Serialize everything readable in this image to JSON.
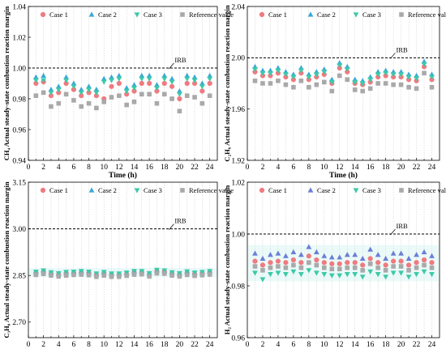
{
  "chart_data": [
    {
      "type": "scatter",
      "ylabel": "CH₄ Actual steady-state combustion reaction margin",
      "xlabel": "Time (h)",
      "ylim": [
        0.94,
        1.04
      ],
      "yticks": [
        "0.94",
        "0.96",
        "0.98",
        "1.00",
        "1.02",
        "1.04"
      ],
      "xlim": [
        0,
        25
      ],
      "xticks": [
        "0",
        "2",
        "4",
        "6",
        "8",
        "10",
        "12",
        "14",
        "16",
        "18",
        "20",
        "22",
        "24"
      ],
      "reference_line": {
        "label": "IRB",
        "y": 1.0
      },
      "legend": [
        "Case 1",
        "Case 2",
        "Case 3",
        "Reference value"
      ],
      "x": [
        1,
        2,
        3,
        4,
        5,
        6,
        7,
        8,
        9,
        10,
        11,
        12,
        13,
        14,
        15,
        16,
        17,
        18,
        19,
        20,
        21,
        22,
        23,
        24
      ],
      "series": [
        {
          "name": "Case 1",
          "marker": "circle",
          "color": "#f07a80",
          "values": [
            0.99,
            0.991,
            0.982,
            0.984,
            0.99,
            0.986,
            0.982,
            0.984,
            0.982,
            0.98,
            0.988,
            0.99,
            0.983,
            0.985,
            0.99,
            0.99,
            0.985,
            0.99,
            0.988,
            0.98,
            0.99,
            0.99,
            0.985,
            0.99
          ]
        },
        {
          "name": "Case 2",
          "marker": "triangle-up",
          "color": "#3aa8d8",
          "values": [
            0.994,
            0.995,
            0.986,
            0.988,
            0.994,
            0.99,
            0.986,
            0.988,
            0.986,
            0.993,
            0.994,
            0.995,
            0.987,
            0.989,
            0.995,
            0.995,
            0.989,
            0.995,
            0.993,
            0.985,
            0.995,
            0.994,
            0.99,
            0.995
          ]
        },
        {
          "name": "Case 3",
          "marker": "triangle-down",
          "color": "#3cc9a8",
          "values": [
            0.992,
            0.992,
            0.984,
            0.986,
            0.992,
            0.988,
            0.984,
            0.986,
            0.984,
            0.991,
            0.992,
            0.993,
            0.985,
            0.987,
            0.993,
            0.993,
            0.987,
            0.993,
            0.991,
            0.983,
            0.993,
            0.992,
            0.988,
            0.993
          ]
        },
        {
          "name": "Reference value",
          "marker": "square",
          "color": "#a9a9a9",
          "values": [
            0.982,
            0.984,
            0.975,
            0.977,
            0.983,
            0.979,
            0.975,
            0.977,
            0.974,
            0.978,
            0.981,
            0.982,
            0.976,
            0.978,
            0.983,
            0.983,
            0.977,
            0.983,
            0.98,
            0.972,
            0.982,
            0.981,
            0.977,
            0.982
          ]
        }
      ]
    },
    {
      "type": "scatter",
      "ylabel": "C₂H₆ Actual steady-state combustion reaction margin",
      "xlabel": "Time (h)",
      "ylim": [
        1.92,
        2.04
      ],
      "yticks": [
        "1.92",
        "1.96",
        "2.00",
        "2.04"
      ],
      "xlim": [
        0,
        25
      ],
      "xticks": [
        "0",
        "2",
        "4",
        "6",
        "8",
        "10",
        "12",
        "14",
        "16",
        "18",
        "20",
        "22",
        "24"
      ],
      "reference_line": {
        "label": "IRB",
        "y": 2.0
      },
      "legend": [
        "Case 1",
        "Case 2",
        "Case 3",
        "Reference value"
      ],
      "x": [
        1,
        2,
        3,
        4,
        5,
        6,
        7,
        8,
        9,
        10,
        11,
        12,
        13,
        14,
        15,
        16,
        17,
        18,
        19,
        20,
        21,
        22,
        23,
        24
      ],
      "series": [
        {
          "name": "Case 1",
          "marker": "circle",
          "color": "#f07a80",
          "values": [
            1.989,
            1.986,
            1.986,
            1.988,
            1.985,
            1.983,
            1.988,
            1.983,
            1.985,
            1.987,
            1.98,
            1.992,
            1.989,
            1.98,
            1.979,
            1.981,
            1.985,
            1.986,
            1.985,
            1.985,
            1.983,
            1.982,
            1.993,
            1.983
          ]
        },
        {
          "name": "Case 2",
          "marker": "triangle-up",
          "color": "#3aa8d8",
          "values": [
            1.993,
            1.99,
            1.99,
            1.992,
            1.989,
            1.987,
            1.992,
            1.987,
            1.989,
            1.991,
            1.983,
            1.996,
            1.993,
            1.983,
            1.982,
            1.985,
            1.989,
            1.99,
            1.989,
            1.989,
            1.987,
            1.986,
            1.997,
            1.987
          ]
        },
        {
          "name": "Case 3",
          "marker": "triangle-down",
          "color": "#3cc9a8",
          "values": [
            1.991,
            1.988,
            1.988,
            1.99,
            1.987,
            1.985,
            1.99,
            1.985,
            1.987,
            1.989,
            1.981,
            1.994,
            1.991,
            1.981,
            1.98,
            1.983,
            1.987,
            1.988,
            1.987,
            1.987,
            1.985,
            1.984,
            1.995,
            1.985
          ]
        },
        {
          "name": "Reference value",
          "marker": "square",
          "color": "#a9a9a9",
          "values": [
            1.982,
            1.98,
            1.98,
            1.982,
            1.979,
            1.977,
            1.982,
            1.977,
            1.979,
            1.981,
            1.974,
            1.986,
            1.983,
            1.975,
            1.974,
            1.976,
            1.98,
            1.98,
            1.979,
            1.979,
            1.977,
            1.976,
            1.988,
            1.977
          ]
        }
      ]
    },
    {
      "type": "scatter",
      "ylabel": "C₃H₈ Actual steady-state combustion reaction margin",
      "xlabel": "Time (h)",
      "ylim": [
        2.65,
        3.15
      ],
      "yticks": [
        "2.70",
        "2.85",
        "3.00",
        "3.15"
      ],
      "xlim": [
        0,
        25
      ],
      "xticks": [
        "0",
        "2",
        "4",
        "6",
        "8",
        "10",
        "12",
        "14",
        "16",
        "18",
        "20",
        "22",
        "24"
      ],
      "reference_line": {
        "label": "IRB",
        "y": 3.0
      },
      "legend": [
        "Case 1",
        "Case 2",
        "Case 3",
        "Reference value"
      ],
      "x": [
        1,
        2,
        3,
        4,
        5,
        6,
        7,
        8,
        9,
        10,
        11,
        12,
        13,
        14,
        15,
        16,
        17,
        18,
        19,
        20,
        21,
        22,
        23,
        24
      ],
      "series": [
        {
          "name": "Case 1",
          "marker": "circle",
          "color": "#f07a80",
          "values": [
            2.858,
            2.862,
            2.856,
            2.853,
            2.857,
            2.858,
            2.86,
            2.858,
            2.852,
            2.857,
            2.852,
            2.852,
            2.855,
            2.86,
            2.86,
            2.853,
            2.864,
            2.862,
            2.856,
            2.853,
            2.859,
            2.855,
            2.857,
            2.86
          ]
        },
        {
          "name": "Case 2",
          "marker": "triangle-up",
          "color": "#3aa8d8",
          "values": [
            2.86,
            2.864,
            2.858,
            2.855,
            2.859,
            2.86,
            2.862,
            2.86,
            2.854,
            2.859,
            2.854,
            2.854,
            2.857,
            2.862,
            2.862,
            2.855,
            2.866,
            2.864,
            2.858,
            2.855,
            2.861,
            2.857,
            2.859,
            2.862
          ]
        },
        {
          "name": "Case 3",
          "marker": "triangle-down",
          "color": "#3cc9a8",
          "values": [
            2.862,
            2.866,
            2.86,
            2.857,
            2.861,
            2.862,
            2.864,
            2.862,
            2.856,
            2.861,
            2.856,
            2.856,
            2.859,
            2.864,
            2.864,
            2.857,
            2.868,
            2.866,
            2.86,
            2.857,
            2.863,
            2.859,
            2.861,
            2.864
          ]
        },
        {
          "name": "Reference value",
          "marker": "square",
          "color": "#a9a9a9",
          "values": [
            2.852,
            2.855,
            2.85,
            2.847,
            2.85,
            2.852,
            2.853,
            2.851,
            2.846,
            2.85,
            2.846,
            2.846,
            2.849,
            2.853,
            2.854,
            2.847,
            2.857,
            2.856,
            2.85,
            2.847,
            2.852,
            2.849,
            2.851,
            2.853
          ]
        }
      ]
    },
    {
      "type": "scatter",
      "ylabel": "H₂ Actual steady-state combustion reaction margin",
      "xlabel": "Time (h)",
      "ylim": [
        0.96,
        1.02
      ],
      "yticks": [
        "0.96",
        "0.98",
        "1.00",
        "1.02"
      ],
      "xlim": [
        0,
        25
      ],
      "xticks": [
        "0",
        "2",
        "4",
        "6",
        "8",
        "10",
        "12",
        "14",
        "16",
        "18",
        "20",
        "22",
        "24"
      ],
      "reference_line": {
        "label": "IRB",
        "y": 1.0
      },
      "legend": [
        "Case 1",
        "Case 2",
        "Case 3",
        "Reference value"
      ],
      "x": [
        1,
        2,
        3,
        4,
        5,
        6,
        7,
        8,
        9,
        10,
        11,
        12,
        13,
        14,
        15,
        16,
        17,
        18,
        19,
        20,
        21,
        22,
        23,
        24
      ],
      "series": [
        {
          "name": "Case 1",
          "marker": "circle",
          "color": "#f07a80",
          "values": [
            0.9895,
            0.988,
            0.989,
            0.9895,
            0.989,
            0.99,
            0.989,
            0.9915,
            0.99,
            0.989,
            0.9885,
            0.9885,
            0.989,
            0.989,
            0.988,
            0.9905,
            0.989,
            0.988,
            0.9895,
            0.9895,
            0.988,
            0.989,
            0.99,
            0.989
          ]
        },
        {
          "name": "Case 2",
          "marker": "triangle-up",
          "color": "#6b7fd7",
          "values": [
            0.9925,
            0.9905,
            0.992,
            0.9925,
            0.9915,
            0.993,
            0.992,
            0.995,
            0.993,
            0.9915,
            0.991,
            0.991,
            0.992,
            0.992,
            0.9905,
            0.994,
            0.992,
            0.9905,
            0.9925,
            0.9925,
            0.9905,
            0.992,
            0.993,
            0.9915
          ]
        },
        {
          "name": "Case 3",
          "marker": "triangle-down",
          "color": "#3cc9a8",
          "values": [
            0.985,
            0.9825,
            0.9845,
            0.985,
            0.9845,
            0.9855,
            0.9845,
            0.986,
            0.985,
            0.9845,
            0.984,
            0.984,
            0.9845,
            0.9845,
            0.9835,
            0.9855,
            0.9845,
            0.9835,
            0.985,
            0.985,
            0.9835,
            0.9845,
            0.9855,
            0.9845
          ]
        },
        {
          "name": "Reference value",
          "marker": "square",
          "color": "#a9a9a9",
          "values": [
            0.9875,
            0.986,
            0.987,
            0.9875,
            0.987,
            0.988,
            0.987,
            0.989,
            0.988,
            0.987,
            0.9865,
            0.9865,
            0.987,
            0.987,
            0.986,
            0.9885,
            0.987,
            0.986,
            0.9875,
            0.9875,
            0.986,
            0.987,
            0.988,
            0.987
          ]
        }
      ]
    }
  ]
}
